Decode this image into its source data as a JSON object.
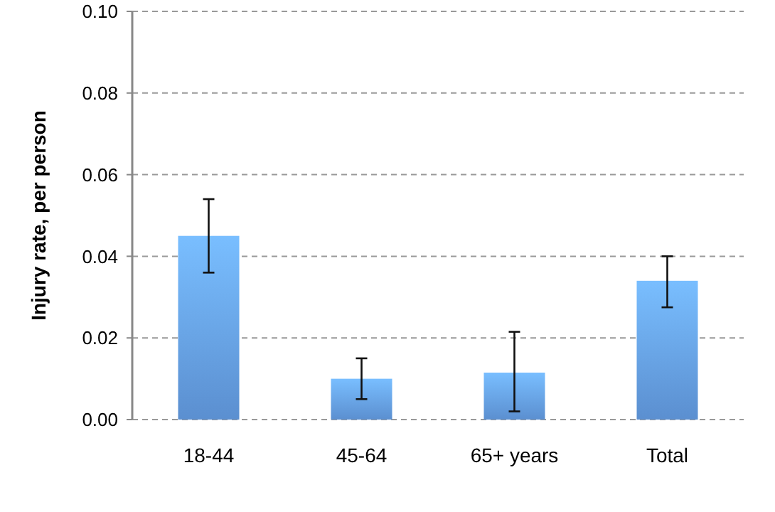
{
  "chart_data": {
    "type": "bar",
    "ylabel": "Injury rate, per person",
    "categories": [
      "18-44",
      "45-64",
      "65+ years",
      "Total"
    ],
    "values": [
      0.045,
      0.01,
      0.0115,
      0.034
    ],
    "errors": [
      [
        0.036,
        0.054
      ],
      [
        0.005,
        0.015
      ],
      [
        0.002,
        0.0215
      ],
      [
        0.0275,
        0.04
      ]
    ],
    "color": "#5b8fd0",
    "ylim": [
      0,
      0.1
    ],
    "yticks": [
      {
        "value": 0,
        "label": "0.00"
      },
      {
        "value": 0.02,
        "label": "0.02"
      },
      {
        "value": 0.04,
        "label": "0.04"
      },
      {
        "value": 0.06,
        "label": "0.06"
      },
      {
        "value": 0.08,
        "label": "0.08"
      },
      {
        "value": 0.1,
        "label": "0.10"
      }
    ],
    "grid": "y"
  }
}
